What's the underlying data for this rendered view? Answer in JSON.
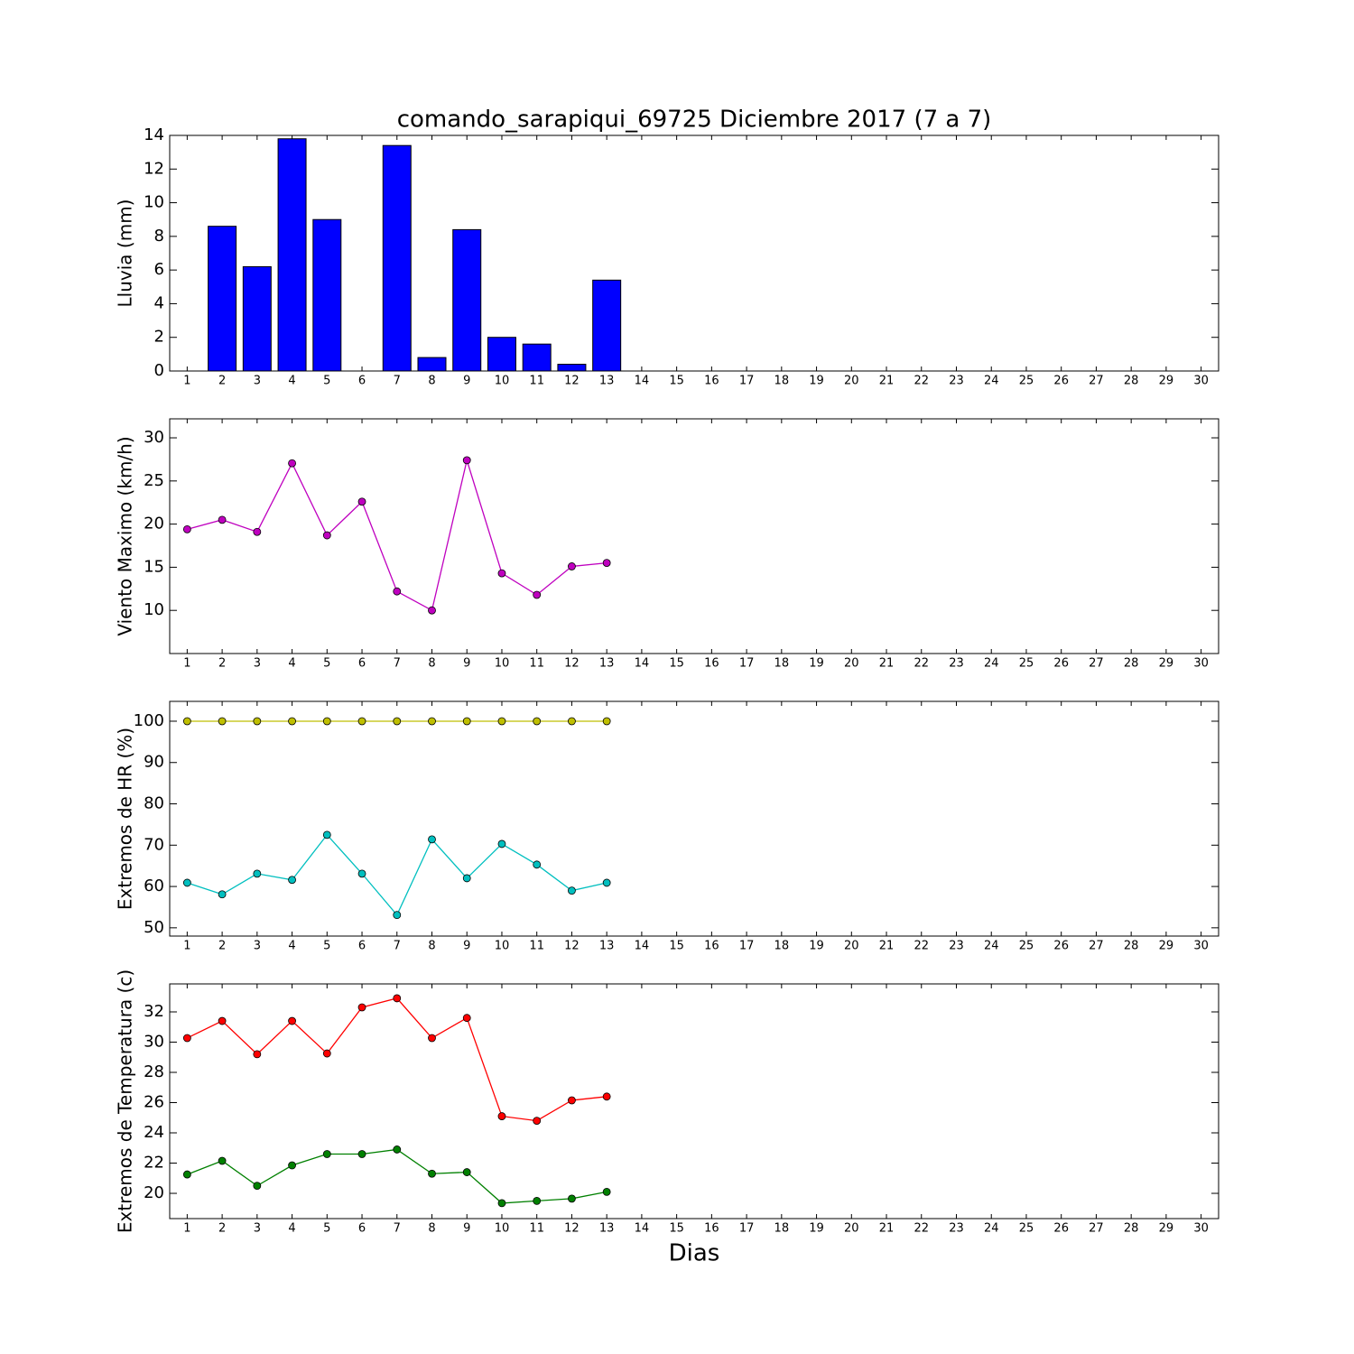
{
  "chart_data": [
    {
      "type": "bar",
      "title": "comando_sarapiqui_69725 Diciembre 2017  (7 a 7)",
      "ylabel": "Lluvia (mm)",
      "x": [
        1,
        2,
        3,
        4,
        5,
        6,
        7,
        8,
        9,
        10,
        11,
        12,
        13
      ],
      "values": [
        0,
        8.6,
        6.2,
        13.8,
        9.0,
        0,
        13.4,
        0.8,
        8.4,
        2.0,
        1.6,
        0.4,
        5.4
      ],
      "color": "#0000ff",
      "bar_width": 0.8,
      "xlim": [
        0.5,
        30.5
      ],
      "xticks": [
        1,
        2,
        3,
        4,
        5,
        6,
        7,
        8,
        9,
        10,
        11,
        12,
        13,
        14,
        15,
        16,
        17,
        18,
        19,
        20,
        21,
        22,
        23,
        24,
        25,
        26,
        27,
        28,
        29,
        30
      ],
      "ylim": [
        0,
        14
      ],
      "yticks": [
        0,
        2,
        4,
        6,
        8,
        10,
        12,
        14
      ],
      "grid": false
    },
    {
      "type": "line",
      "ylabel": "Viento Maximo (km/h)",
      "x": [
        1,
        2,
        3,
        4,
        5,
        6,
        7,
        8,
        9,
        10,
        11,
        12,
        13
      ],
      "series": [
        {
          "color": "#bf00bf",
          "values": [
            19.4,
            20.5,
            19.1,
            27.05,
            18.7,
            22.6,
            12.2,
            10.0,
            27.4,
            14.3,
            11.8,
            15.1,
            15.5
          ]
        }
      ],
      "xlim": [
        0.5,
        30.5
      ],
      "xticks": [
        1,
        2,
        3,
        4,
        5,
        6,
        7,
        8,
        9,
        10,
        11,
        12,
        13,
        14,
        15,
        16,
        17,
        18,
        19,
        20,
        21,
        22,
        23,
        24,
        25,
        26,
        27,
        28,
        29,
        30
      ],
      "ylim": [
        5,
        32.2
      ],
      "yticks": [
        10,
        15,
        20,
        25,
        30
      ],
      "grid": false
    },
    {
      "type": "line",
      "ylabel": "Extremos de HR (%)",
      "x": [
        1,
        2,
        3,
        4,
        5,
        6,
        7,
        8,
        9,
        10,
        11,
        12,
        13
      ],
      "series": [
        {
          "color": "#bfbf00",
          "values": [
            100,
            100,
            100,
            100,
            100,
            100,
            100,
            100,
            100,
            100,
            100,
            100,
            100
          ]
        },
        {
          "color": "#00bfbf",
          "values": [
            60.9,
            58.1,
            63.1,
            61.6,
            72.5,
            63.1,
            53.1,
            71.4,
            62.0,
            70.3,
            65.3,
            59.0,
            60.9
          ]
        }
      ],
      "xlim": [
        0.5,
        30.5
      ],
      "xticks": [
        1,
        2,
        3,
        4,
        5,
        6,
        7,
        8,
        9,
        10,
        11,
        12,
        13,
        14,
        15,
        16,
        17,
        18,
        19,
        20,
        21,
        22,
        23,
        24,
        25,
        26,
        27,
        28,
        29,
        30
      ],
      "ylim": [
        48,
        104.8
      ],
      "yticks": [
        50,
        60,
        70,
        80,
        90,
        100
      ],
      "grid": false
    },
    {
      "type": "line",
      "ylabel": "Extremos de Temperatura (c)",
      "xlabel": "Dias",
      "x": [
        1,
        2,
        3,
        4,
        5,
        6,
        7,
        8,
        9,
        10,
        11,
        12,
        13
      ],
      "series": [
        {
          "color": "#ff0000",
          "values": [
            30.27,
            31.4,
            29.2,
            31.4,
            29.25,
            32.3,
            32.9,
            30.27,
            31.6,
            25.1,
            24.8,
            26.15,
            26.4
          ]
        },
        {
          "color": "#008000",
          "values": [
            21.25,
            22.15,
            20.5,
            21.85,
            22.6,
            22.6,
            22.9,
            21.3,
            21.4,
            19.35,
            19.5,
            19.65,
            20.1
          ]
        }
      ],
      "xlim": [
        0.5,
        30.5
      ],
      "xticks": [
        1,
        2,
        3,
        4,
        5,
        6,
        7,
        8,
        9,
        10,
        11,
        12,
        13,
        14,
        15,
        16,
        17,
        18,
        19,
        20,
        21,
        22,
        23,
        24,
        25,
        26,
        27,
        28,
        29,
        30
      ],
      "ylim": [
        18.33,
        33.85
      ],
      "yticks": [
        20,
        22,
        24,
        26,
        28,
        30,
        32
      ],
      "grid": false
    }
  ]
}
